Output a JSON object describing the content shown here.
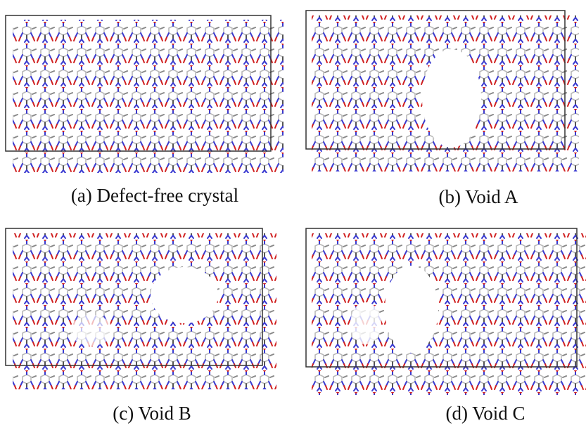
{
  "panels": [
    {
      "caption": "(a) Defect-free crystal"
    },
    {
      "caption": "(b) Void A"
    },
    {
      "caption": "(c) Void B"
    },
    {
      "caption": "(d) Void C"
    }
  ]
}
